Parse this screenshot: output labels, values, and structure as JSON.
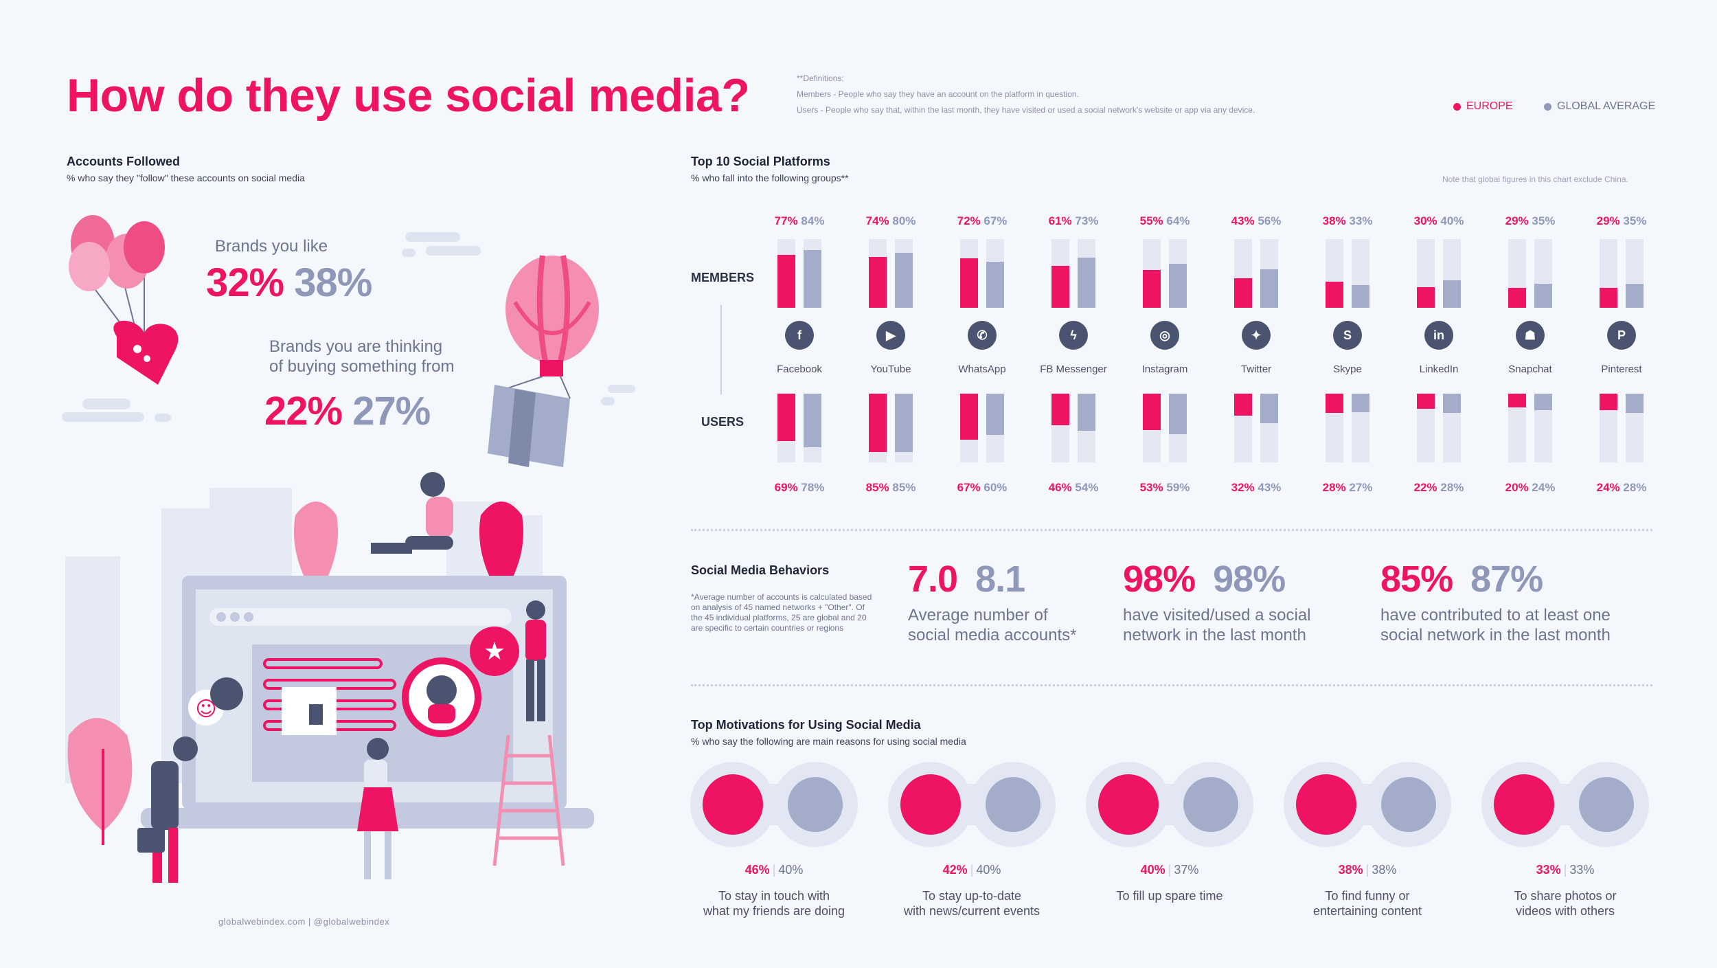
{
  "title": "How do they use social media?",
  "definitions": {
    "heading": "**Definitions:",
    "members": "Members - People who say they have an account on the platform in question.",
    "users": "Users - People who say that, within the last month, they have visited or used a social network's website or app via any device."
  },
  "legend": {
    "europe": "EUROPE",
    "global": "GLOBAL AVERAGE"
  },
  "colors": {
    "europe": "#ee1363",
    "global": "#a3acc9",
    "dark": "#2b3245",
    "track": "#e5e8f3"
  },
  "accounts": {
    "title": "Accounts Followed",
    "subtitle": "% who say they \"follow\" these accounts on social media",
    "items": [
      {
        "label_lines": [
          "Brands you like"
        ],
        "europe": "32%",
        "global": "38%"
      },
      {
        "label_lines": [
          "Brands you are thinking",
          "of buying something from"
        ],
        "europe": "22%",
        "global": "27%"
      }
    ]
  },
  "footer": "globalwebindex.com  |  @globalwebindex",
  "chart_data": [
    {
      "type": "bar",
      "title": "Top 10 Social Platforms",
      "subtitle": "% who fall into the following groups**",
      "note": "Note that global figures in this chart exclude China.",
      "row_labels": {
        "members": "MEMBERS",
        "users": "USERS"
      },
      "categories": [
        "Facebook",
        "YouTube",
        "WhatsApp",
        "FB Messenger",
        "Instagram",
        "Twitter",
        "Skype",
        "LinkedIn",
        "Snapchat",
        "Pinterest"
      ],
      "icons": [
        "facebook-icon",
        "youtube-icon",
        "whatsapp-icon",
        "messenger-icon",
        "instagram-icon",
        "twitter-icon",
        "skype-icon",
        "linkedin-icon",
        "snapchat-icon",
        "pinterest-icon"
      ],
      "icon_glyphs": [
        "f",
        "▶",
        "✆",
        "ϟ",
        "◎",
        "✦",
        "S",
        "in",
        "☗",
        "P"
      ],
      "ylim": [
        0,
        100
      ],
      "series": [
        {
          "name": "Members - Europe",
          "values": [
            77,
            74,
            72,
            61,
            55,
            43,
            38,
            30,
            29,
            29
          ]
        },
        {
          "name": "Members - Global Average",
          "values": [
            84,
            80,
            67,
            73,
            64,
            56,
            33,
            40,
            35,
            35
          ]
        },
        {
          "name": "Users - Europe",
          "values": [
            69,
            85,
            67,
            46,
            53,
            32,
            28,
            22,
            20,
            24
          ]
        },
        {
          "name": "Users - Global Average",
          "values": [
            78,
            85,
            60,
            54,
            59,
            43,
            27,
            28,
            24,
            28
          ]
        }
      ]
    },
    {
      "type": "table",
      "title": "Social Media Behaviors",
      "note": "*Average number of accounts is calculated based on analysis of 45 named networks + \"Other\". Of the 45 individual platforms, 25 are global and 20 are specific to certain countries or regions",
      "items": [
        {
          "europe": "7.0",
          "global": "8.1",
          "label_lines": [
            "Average number of",
            "social media accounts*"
          ]
        },
        {
          "europe": "98%",
          "global": "98%",
          "label_lines": [
            "have visited/used a social",
            "network in the last month"
          ]
        },
        {
          "europe": "85%",
          "global": "87%",
          "label_lines": [
            "have contributed to at least one",
            "social network in the last month"
          ]
        }
      ]
    },
    {
      "type": "table",
      "title": "Top Motivations for Using Social Media",
      "subtitle": "% who say the following are main reasons for using social media",
      "items": [
        {
          "europe": "46%",
          "global": "40%",
          "label_lines": [
            "To stay in touch with",
            "what my friends are doing"
          ]
        },
        {
          "europe": "42%",
          "global": "40%",
          "label_lines": [
            "To stay up-to-date",
            "with news/current events"
          ]
        },
        {
          "europe": "40%",
          "global": "37%",
          "label_lines": [
            "To fill up spare time"
          ]
        },
        {
          "europe": "38%",
          "global": "38%",
          "label_lines": [
            "To find funny or",
            "entertaining content"
          ]
        },
        {
          "europe": "33%",
          "global": "33%",
          "label_lines": [
            "To share photos or",
            "videos with others"
          ]
        }
      ]
    }
  ]
}
